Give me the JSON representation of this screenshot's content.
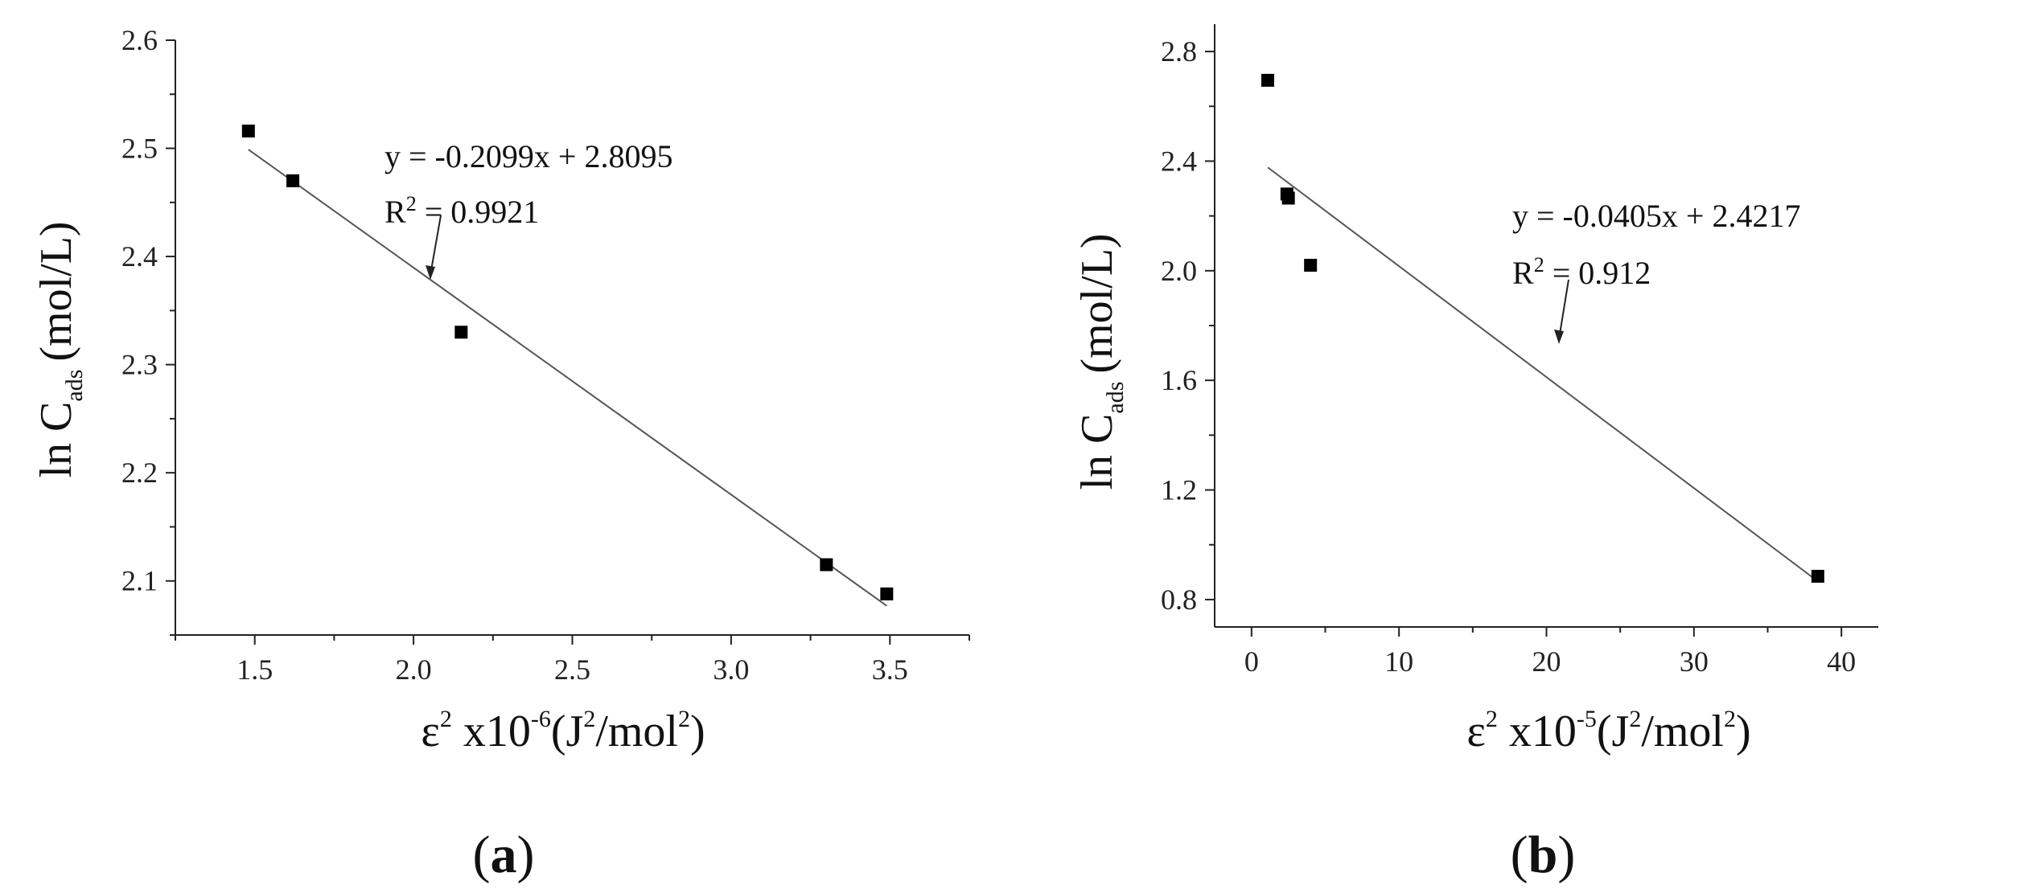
{
  "chart_data": [
    {
      "type": "scatter",
      "panel_label": "a",
      "xlabel": {
        "main": "ε",
        "sup1": "2",
        "mid": "x10",
        "sup2": "-6",
        "unit_a": "(J",
        "sup3": "2",
        "unit_b": "/mol",
        "sup4": "2",
        "unit_c": ")"
      },
      "ylabel": {
        "main": "ln C",
        "sub": "ads",
        "unit": "(mol/L)"
      },
      "xlim": [
        1.25,
        3.75
      ],
      "ylim": [
        2.05,
        2.6
      ],
      "xticks": [
        1.5,
        2.0,
        2.5,
        3.0,
        3.5
      ],
      "xtick_labels": [
        "1.5",
        "2.0",
        "2.5",
        "3.0",
        "3.5"
      ],
      "yticks": [
        2.1,
        2.2,
        2.3,
        2.4,
        2.5,
        2.6
      ],
      "ytick_labels": [
        "2.1",
        "2.2",
        "2.3",
        "2.4",
        "2.5",
        "2.6"
      ],
      "x": [
        1.48,
        1.62,
        2.15,
        3.3,
        3.49
      ],
      "y": [
        2.516,
        2.47,
        2.33,
        2.115,
        2.088
      ],
      "fit": {
        "slope": -0.2099,
        "intercept": 2.8095,
        "x_range": [
          1.48,
          3.49
        ]
      },
      "equation": "y = -0.2099x + 2.8095",
      "r2_prefix": "R",
      "r2_sup": "2",
      "r2_value": " = 0.9921",
      "grid": false,
      "legend": "none"
    },
    {
      "type": "scatter",
      "panel_label": "b",
      "xlabel": {
        "main": "ε",
        "sup1": "2",
        "mid": "x10",
        "sup2": "-5",
        "unit_a": "(J",
        "sup3": "2",
        "unit_b": "/mol",
        "sup4": "2",
        "unit_c": ")"
      },
      "ylabel": {
        "main": "ln C",
        "sub": "ads",
        "unit": "(mol/L)"
      },
      "xlim": [
        -2.5,
        42.5
      ],
      "ylim": [
        0.7,
        2.9
      ],
      "xticks": [
        0,
        10,
        20,
        30,
        40
      ],
      "xtick_labels": [
        "0",
        "10",
        "20",
        "30",
        "40"
      ],
      "yticks": [
        0.8,
        1.2,
        1.6,
        2.0,
        2.4,
        2.8
      ],
      "ytick_labels": [
        "0.8",
        "1.2",
        "1.6",
        "2.0",
        "2.4",
        "2.8"
      ],
      "x": [
        1.1,
        2.4,
        2.5,
        4.0,
        38.4
      ],
      "y": [
        2.695,
        2.28,
        2.265,
        2.02,
        0.885
      ],
      "fit": {
        "slope": -0.0405,
        "intercept": 2.4217,
        "x_range": [
          1.1,
          38.4
        ]
      },
      "equation": "y = -0.0405x + 2.4217",
      "r2_prefix": "R",
      "r2_sup": "2",
      "r2_value": " = 0.912",
      "grid": false,
      "legend": "none"
    }
  ],
  "colors": {
    "marker": "#000000",
    "fit_line": "#555555",
    "axis": "#222222",
    "text": "#111111"
  }
}
